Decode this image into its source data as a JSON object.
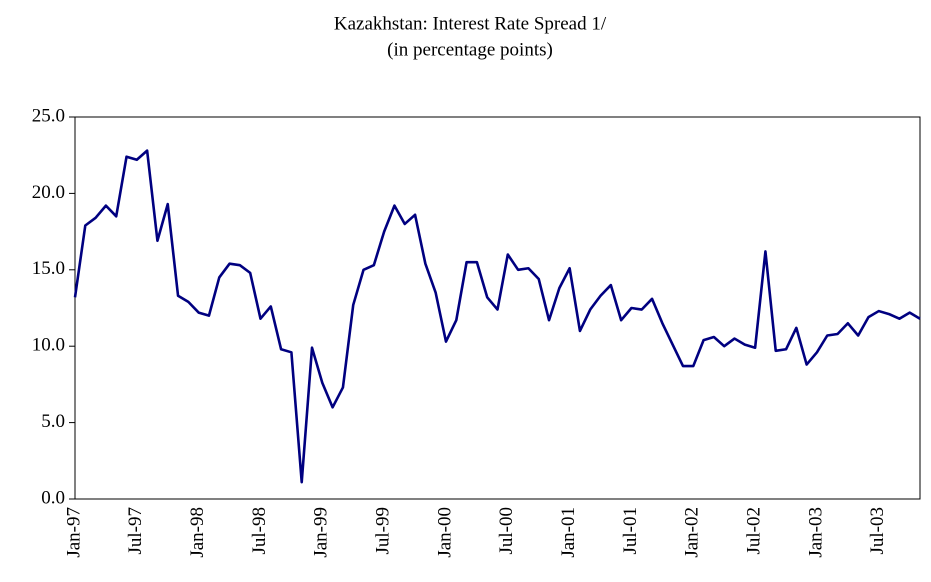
{
  "chart_data": {
    "type": "line",
    "title": "Kazakhstan: Interest Rate Spread 1/",
    "subtitle": "(in percentage points)",
    "categories": [
      "Jan-97",
      null,
      null,
      null,
      null,
      null,
      "Jul-97",
      null,
      null,
      null,
      null,
      null,
      "Jan-98",
      null,
      null,
      null,
      null,
      null,
      "Jul-98",
      null,
      null,
      null,
      null,
      null,
      "Jan-99",
      null,
      null,
      null,
      null,
      null,
      "Jul-99",
      null,
      null,
      null,
      null,
      null,
      "Jan-00",
      null,
      null,
      null,
      null,
      null,
      "Jul-00",
      null,
      null,
      null,
      null,
      null,
      "Jan-01",
      null,
      null,
      null,
      null,
      null,
      "Jul-01",
      null,
      null,
      null,
      null,
      null,
      "Jan-02",
      null,
      null,
      null,
      null,
      null,
      "Jul-02",
      null,
      null,
      null,
      null,
      null,
      "Jan-03",
      null,
      null,
      null,
      null,
      null,
      "Jul-03",
      null,
      null,
      null,
      null
    ],
    "values": [
      13.2,
      17.9,
      18.4,
      19.2,
      18.5,
      22.4,
      22.2,
      22.8,
      16.9,
      19.3,
      13.3,
      12.9,
      12.2,
      12.0,
      14.5,
      15.4,
      15.3,
      14.8,
      11.8,
      12.6,
      9.8,
      9.6,
      1.1,
      9.9,
      7.6,
      6.0,
      7.3,
      12.7,
      15.0,
      15.3,
      17.5,
      19.2,
      18.0,
      18.6,
      15.4,
      13.5,
      10.3,
      11.7,
      15.5,
      15.5,
      13.2,
      12.4,
      16.0,
      15.0,
      15.1,
      14.4,
      11.7,
      13.8,
      15.1,
      11.0,
      12.4,
      13.3,
      14.0,
      11.7,
      12.5,
      12.4,
      13.1,
      11.5,
      10.1,
      8.7,
      8.7,
      10.4,
      10.6,
      10.0,
      10.5,
      10.1,
      9.9,
      16.2,
      9.7,
      9.8,
      11.2,
      8.8,
      9.6,
      10.7,
      10.8,
      11.5,
      10.7,
      11.9,
      12.3,
      12.1,
      11.8,
      12.2,
      11.8
    ],
    "color": "#000080",
    "ylim": [
      0,
      25
    ],
    "yticks": [
      {
        "value": 0,
        "label": "0.0"
      },
      {
        "value": 5,
        "label": "5.0"
      },
      {
        "value": 10,
        "label": "10.0"
      },
      {
        "value": 15,
        "label": "15.0"
      },
      {
        "value": 20,
        "label": "20.0"
      },
      {
        "value": 25,
        "label": "25.0"
      }
    ]
  }
}
